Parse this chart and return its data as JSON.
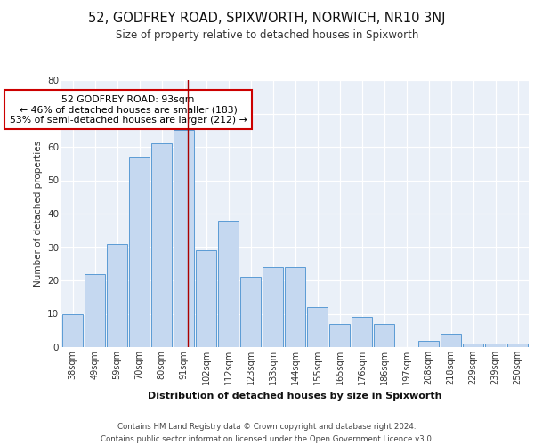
{
  "title": "52, GODFREY ROAD, SPIXWORTH, NORWICH, NR10 3NJ",
  "subtitle": "Size of property relative to detached houses in Spixworth",
  "xlabel": "Distribution of detached houses by size in Spixworth",
  "ylabel": "Number of detached properties",
  "categories": [
    "38sqm",
    "49sqm",
    "59sqm",
    "70sqm",
    "80sqm",
    "91sqm",
    "102sqm",
    "112sqm",
    "123sqm",
    "133sqm",
    "144sqm",
    "155sqm",
    "165sqm",
    "176sqm",
    "186sqm",
    "197sqm",
    "208sqm",
    "218sqm",
    "229sqm",
    "239sqm",
    "250sqm"
  ],
  "values": [
    10,
    22,
    31,
    57,
    61,
    65,
    29,
    38,
    21,
    24,
    24,
    12,
    7,
    9,
    7,
    0,
    2,
    4,
    1,
    1,
    1
  ],
  "bar_color": "#c5d8f0",
  "bar_edge_color": "#5b9bd5",
  "annotation_text": "52 GODFREY ROAD: 93sqm\n← 46% of detached houses are smaller (183)\n53% of semi-detached houses are larger (212) →",
  "annotation_box_color": "#ffffff",
  "annotation_box_edge_color": "#cc0000",
  "vline_color": "#aa0000",
  "background_color": "#eaf0f8",
  "grid_color": "#ffffff",
  "footer_text": "Contains HM Land Registry data © Crown copyright and database right 2024.\nContains public sector information licensed under the Open Government Licence v3.0.",
  "ylim": [
    0,
    80
  ],
  "yticks": [
    0,
    10,
    20,
    30,
    40,
    50,
    60,
    70,
    80
  ]
}
